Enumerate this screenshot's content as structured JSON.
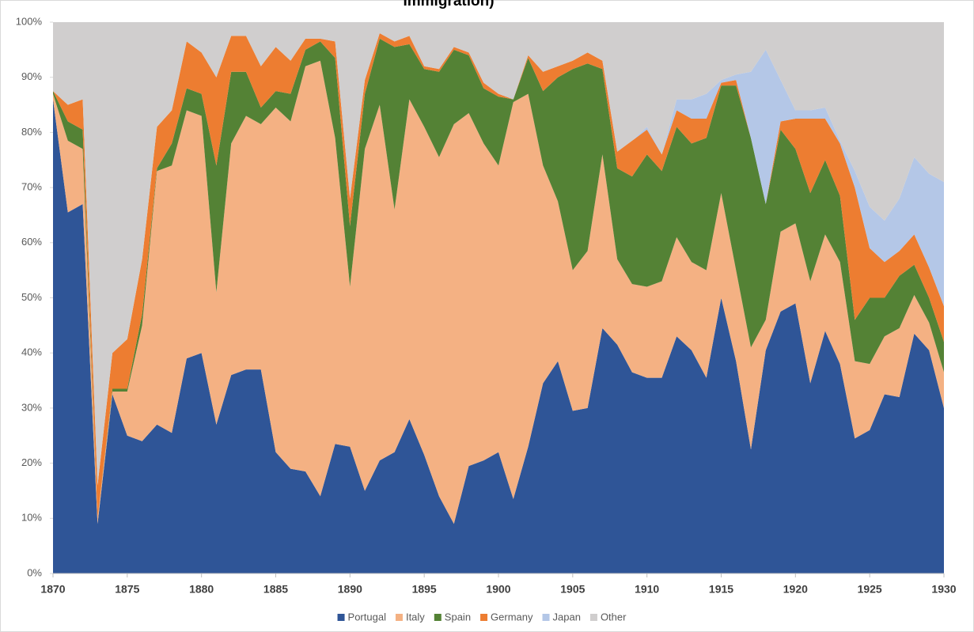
{
  "chart_data": {
    "type": "stacked-area",
    "title": "Immigration)",
    "x": [
      1870,
      1871,
      1872,
      1873,
      1874,
      1875,
      1876,
      1877,
      1878,
      1879,
      1880,
      1881,
      1882,
      1883,
      1884,
      1885,
      1886,
      1887,
      1888,
      1889,
      1890,
      1891,
      1892,
      1893,
      1894,
      1895,
      1896,
      1897,
      1898,
      1899,
      1900,
      1901,
      1902,
      1903,
      1904,
      1905,
      1906,
      1907,
      1908,
      1909,
      1910,
      1911,
      1912,
      1913,
      1914,
      1915,
      1916,
      1917,
      1918,
      1919,
      1920,
      1921,
      1922,
      1923,
      1924,
      1925,
      1926,
      1927,
      1928,
      1929,
      1930
    ],
    "series": [
      {
        "name": "Portugal",
        "color": "#2f5597",
        "values": [
          86,
          65.5,
          67,
          9,
          32.5,
          25,
          24,
          27,
          25.5,
          39,
          40,
          27,
          36,
          37,
          37,
          22,
          19,
          18.5,
          14,
          23.5,
          23,
          15,
          20.5,
          22,
          28,
          21.5,
          14,
          9,
          19.5,
          20.5,
          22,
          13.5,
          23,
          34.5,
          38.5,
          29.5,
          30,
          44.5,
          41.5,
          36.5,
          35.5,
          35.5,
          43,
          40.5,
          35.5,
          50,
          38.5,
          22.5,
          40.5,
          47.5,
          49,
          34.5,
          44,
          38,
          24.5,
          26,
          32.5,
          32,
          43.5,
          40.5,
          30
        ]
      },
      {
        "name": "Italy",
        "color": "#f4b183",
        "values": [
          1,
          13,
          10,
          1,
          0.5,
          8,
          21,
          46,
          48.5,
          45,
          43,
          24,
          42,
          46,
          44.5,
          62.5,
          63,
          73.5,
          79,
          55.5,
          29,
          62,
          64.5,
          44,
          58,
          59.5,
          61.5,
          72.5,
          64,
          57.5,
          52,
          72,
          64,
          39.5,
          29,
          25.5,
          28.5,
          31.5,
          15.5,
          16,
          16.5,
          17.5,
          18,
          16,
          19.5,
          19,
          16.5,
          18.5,
          5.5,
          14.5,
          14.5,
          18.5,
          17.5,
          18.5,
          14,
          12,
          10.5,
          12.5,
          7,
          5,
          6.5
        ]
      },
      {
        "name": "Spain",
        "color": "#548235",
        "values": [
          0.5,
          3.5,
          3.5,
          0,
          0.5,
          0.5,
          2,
          0.5,
          4,
          4,
          4,
          23,
          13,
          8,
          3,
          3,
          5,
          3,
          3.5,
          14.5,
          11,
          10,
          12,
          29.5,
          10,
          10.5,
          15.5,
          13.5,
          10.5,
          10,
          12.5,
          0.5,
          6.5,
          13.5,
          22.5,
          36.5,
          34,
          15.5,
          16.5,
          19.5,
          24,
          20,
          20,
          21.5,
          24,
          19.5,
          33.5,
          38,
          21,
          18.5,
          13.5,
          16,
          13.5,
          12,
          7.5,
          12,
          7,
          9.5,
          5.5,
          4.5,
          5.5
        ]
      },
      {
        "name": "Germany",
        "color": "#ed7d31",
        "values": [
          0,
          3,
          5.5,
          6,
          6.5,
          9,
          10,
          7.5,
          6,
          8.5,
          7.5,
          16,
          6.5,
          6.5,
          7.5,
          8,
          6,
          2,
          0.5,
          3,
          5,
          2.5,
          1,
          1,
          1.5,
          0.5,
          0.5,
          0.5,
          0.5,
          1,
          0.5,
          0,
          0.5,
          3.5,
          2,
          1.5,
          2,
          1.5,
          3,
          6.5,
          4.5,
          3,
          3,
          4.5,
          3.5,
          0.5,
          1,
          0,
          0,
          1.5,
          5.5,
          13.5,
          7.5,
          9.5,
          24,
          9,
          6.5,
          4.5,
          5.5,
          5.5,
          6.5
        ]
      },
      {
        "name": "Japan",
        "color": "#b4c7e7",
        "values": [
          0,
          0,
          0,
          0,
          0,
          0,
          0,
          0,
          0,
          0,
          0,
          0,
          0,
          0,
          0,
          0,
          0,
          0,
          0,
          0,
          0,
          0,
          0,
          0,
          0,
          0,
          0,
          0,
          0,
          0,
          0,
          0,
          0,
          0,
          0,
          0,
          0,
          0,
          0,
          0,
          0.5,
          0,
          2,
          3.5,
          4.5,
          0.5,
          1,
          12,
          28,
          7.5,
          1.5,
          1.5,
          2,
          0.5,
          3,
          7.5,
          7.5,
          9.5,
          14,
          17,
          22.5
        ]
      },
      {
        "name": "Other",
        "color": "#d0cece",
        "values": [
          12.5,
          15,
          14,
          84,
          60,
          57.5,
          43,
          19,
          16,
          3.5,
          5.5,
          10,
          2.5,
          2.5,
          8,
          4.5,
          7,
          3,
          3,
          3.5,
          32,
          10.5,
          2,
          3.5,
          2.5,
          8,
          8.5,
          4.5,
          5.5,
          11,
          13,
          14,
          6,
          9,
          8,
          7,
          5.5,
          7,
          23.5,
          21.5,
          19,
          24,
          14,
          14,
          13,
          10.5,
          9.5,
          9,
          5,
          10.5,
          16,
          16,
          15.5,
          21.5,
          27,
          33.5,
          36,
          32,
          24.5,
          27.5,
          29
        ]
      }
    ],
    "xlim": [
      1870,
      1930
    ],
    "xticks": [
      1870,
      1875,
      1880,
      1885,
      1890,
      1895,
      1900,
      1905,
      1910,
      1915,
      1920,
      1925,
      1930
    ],
    "ylim": [
      0,
      100
    ],
    "yticks": [
      {
        "value": 0,
        "label": "0%"
      },
      {
        "value": 10,
        "label": "10%"
      },
      {
        "value": 20,
        "label": "20%"
      },
      {
        "value": 30,
        "label": "30%"
      },
      {
        "value": 40,
        "label": "40%"
      },
      {
        "value": 50,
        "label": "50%"
      },
      {
        "value": 60,
        "label": "60%"
      },
      {
        "value": 70,
        "label": "70%"
      },
      {
        "value": 80,
        "label": "80%"
      },
      {
        "value": 90,
        "label": "90%"
      },
      {
        "value": 100,
        "label": "100%"
      }
    ],
    "legend": "bottom"
  }
}
